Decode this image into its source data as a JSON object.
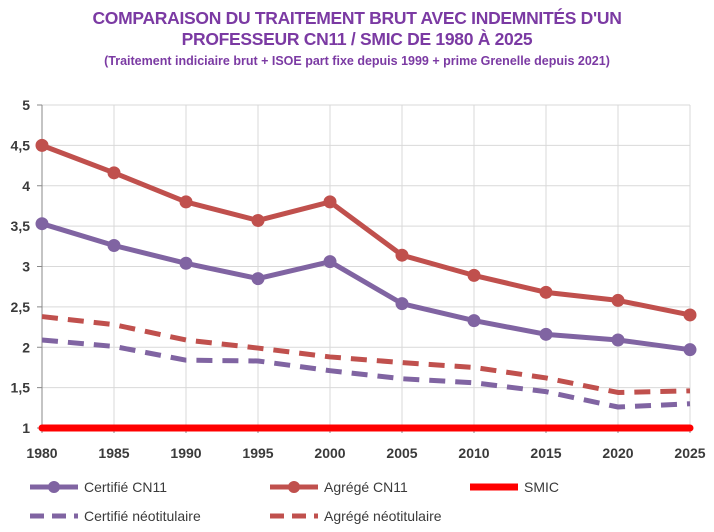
{
  "chart_data": {
    "type": "line",
    "title": "COMPARAISON DU TRAITEMENT BRUT AVEC INDEMNITÉS D'UN PROFESSEUR CN11 / SMIC DE 1980 À 2025",
    "title_lines": [
      "COMPARAISON DU TRAITEMENT BRUT AVEC INDEMNITÉS D'UN",
      "PROFESSEUR CN11 / SMIC DE 1980 À 2025"
    ],
    "subtitle": "(Traitement indiciaire brut + ISOE part fixe depuis 1999 + prime Grenelle depuis 2021)",
    "xlabel": "",
    "ylabel": "",
    "x": [
      1980,
      1985,
      1990,
      1995,
      2000,
      2005,
      2010,
      2015,
      2020,
      2025
    ],
    "x_tick_labels": [
      "1980",
      "1985",
      "1990",
      "1995",
      "2000",
      "2005",
      "2010",
      "2015",
      "2020",
      "2025"
    ],
    "ylim": [
      1,
      5
    ],
    "y_ticks": [
      1,
      1.5,
      2,
      2.5,
      3,
      3.5,
      4,
      4.5,
      5
    ],
    "y_tick_labels": [
      "1",
      "1,5",
      "2",
      "2,5",
      "3",
      "3,5",
      "4",
      "4,5",
      "5"
    ],
    "grid": true,
    "legend_position": "bottom",
    "series": [
      {
        "name": "Certifié CN11",
        "values": [
          3.53,
          3.26,
          3.04,
          2.85,
          3.06,
          2.54,
          2.33,
          2.16,
          2.09,
          1.97
        ],
        "color": "#8064a2",
        "style": "solid",
        "markers": true
      },
      {
        "name": "Agrégé CN11",
        "values": [
          4.5,
          4.16,
          3.8,
          3.57,
          3.8,
          3.14,
          2.89,
          2.68,
          2.58,
          2.4
        ],
        "color": "#c0504d",
        "style": "solid",
        "markers": true
      },
      {
        "name": "SMIC",
        "values": [
          1,
          1,
          1,
          1,
          1,
          1,
          1,
          1,
          1,
          1
        ],
        "color": "#ff0000",
        "style": "solid",
        "markers": false
      },
      {
        "name": "Certifié néotitulaire",
        "values": [
          2.09,
          2.01,
          1.84,
          1.83,
          1.71,
          1.61,
          1.56,
          1.45,
          1.26,
          1.3
        ],
        "color": "#8064a2",
        "style": "dashed",
        "markers": false
      },
      {
        "name": "Agrégé néotitulaire",
        "values": [
          2.38,
          2.28,
          2.09,
          1.99,
          1.88,
          1.81,
          1.75,
          1.62,
          1.44,
          1.46
        ],
        "color": "#c0504d",
        "style": "dashed",
        "markers": false
      }
    ]
  }
}
